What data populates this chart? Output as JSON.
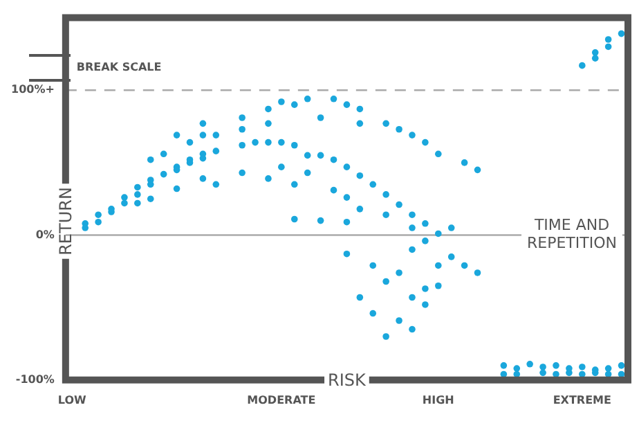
{
  "chart_data": {
    "type": "scatter",
    "xlabel": "RISK",
    "ylabel": "RETURN",
    "ylim": [
      -100,
      150
    ],
    "categories": [
      "LOW",
      null,
      null,
      null,
      null,
      null,
      null,
      null,
      null,
      null,
      null,
      null,
      null,
      null,
      null,
      null,
      "MODERATE",
      null,
      null,
      null,
      null,
      null,
      null,
      null,
      null,
      null,
      null,
      null,
      "HIGH",
      null,
      null,
      null,
      null,
      null,
      null,
      null,
      null,
      null,
      null,
      "EXTREME",
      null,
      null,
      null
    ],
    "yticks": [
      {
        "value": -100,
        "label": "-100%"
      },
      {
        "value": 0,
        "label": "0%"
      },
      {
        "value": 100,
        "label": "100%+"
      }
    ],
    "grid": false,
    "legend": false,
    "marker": "circle",
    "ref_lines": [
      {
        "axis": "y",
        "value": 0,
        "label": "TIME AND REPETITION",
        "color": "#aaaaaa",
        "line_style": "solid"
      },
      {
        "axis": "y",
        "value": 100,
        "color": "#aaaaaa",
        "line_style": "dashed"
      }
    ],
    "annotations": [
      "BREAK SCALE"
    ],
    "series": [
      {
        "color": "#1aa7dc",
        "values": [
          null,
          5,
          9,
          16,
          22,
          28,
          35,
          42,
          45,
          50,
          53,
          58,
          null,
          62,
          64,
          64,
          64,
          62,
          55,
          55,
          52,
          47,
          41,
          35,
          28,
          21,
          14,
          8,
          56,
          5,
          50,
          45,
          null,
          -90,
          -92,
          -89,
          -91,
          -90,
          -92,
          117,
          122,
          130,
          139
        ]
      },
      {
        "color": "#1aa7dc",
        "values": [
          null,
          8,
          14,
          18,
          26,
          33,
          38,
          null,
          47,
          52,
          56,
          69,
          null,
          81,
          null,
          87,
          92,
          90,
          94,
          81,
          94,
          90,
          87,
          -21,
          77,
          73,
          69,
          64,
          1,
          -15,
          -21,
          -26,
          null,
          -96,
          -96,
          null,
          -95,
          -96,
          -95,
          -91,
          126,
          135,
          null
        ]
      },
      {
        "color": "#1aa7dc",
        "values": [
          null,
          null,
          null,
          null,
          null,
          22,
          52,
          56,
          69,
          64,
          77,
          35,
          null,
          73,
          null,
          77,
          47,
          35,
          43,
          10,
          31,
          26,
          77,
          -54,
          14,
          -26,
          5,
          -4,
          -21,
          null,
          null,
          null,
          null,
          null,
          null,
          null,
          null,
          null,
          null,
          -96,
          -93,
          -92,
          -90
        ]
      },
      {
        "color": "#1aa7dc",
        "values": [
          null,
          null,
          null,
          null,
          null,
          null,
          25,
          null,
          32,
          null,
          69,
          null,
          null,
          43,
          null,
          39,
          null,
          11,
          null,
          null,
          null,
          9,
          18,
          null,
          -32,
          -59,
          -43,
          -37,
          -35,
          null,
          null,
          null,
          null,
          null,
          null,
          null,
          null,
          null,
          null,
          null,
          -95,
          -96,
          -96
        ]
      },
      {
        "color": "#1aa7dc",
        "values": [
          null,
          null,
          null,
          null,
          null,
          null,
          null,
          null,
          null,
          null,
          39,
          null,
          null,
          null,
          null,
          null,
          null,
          null,
          null,
          null,
          null,
          -13,
          -43,
          null,
          -70,
          null,
          -10,
          -48,
          null,
          null,
          null,
          null,
          null,
          null,
          null,
          null,
          null,
          null,
          null,
          null,
          null,
          null,
          null
        ]
      },
      {
        "color": "#1aa7dc",
        "values": [
          null,
          null,
          null,
          null,
          null,
          null,
          null,
          null,
          null,
          null,
          null,
          null,
          null,
          null,
          null,
          null,
          null,
          null,
          null,
          null,
          null,
          null,
          null,
          null,
          null,
          null,
          -65,
          null,
          null,
          null,
          null,
          null,
          null,
          null,
          null,
          null,
          null,
          null,
          null,
          null,
          null,
          null,
          null
        ]
      }
    ]
  }
}
